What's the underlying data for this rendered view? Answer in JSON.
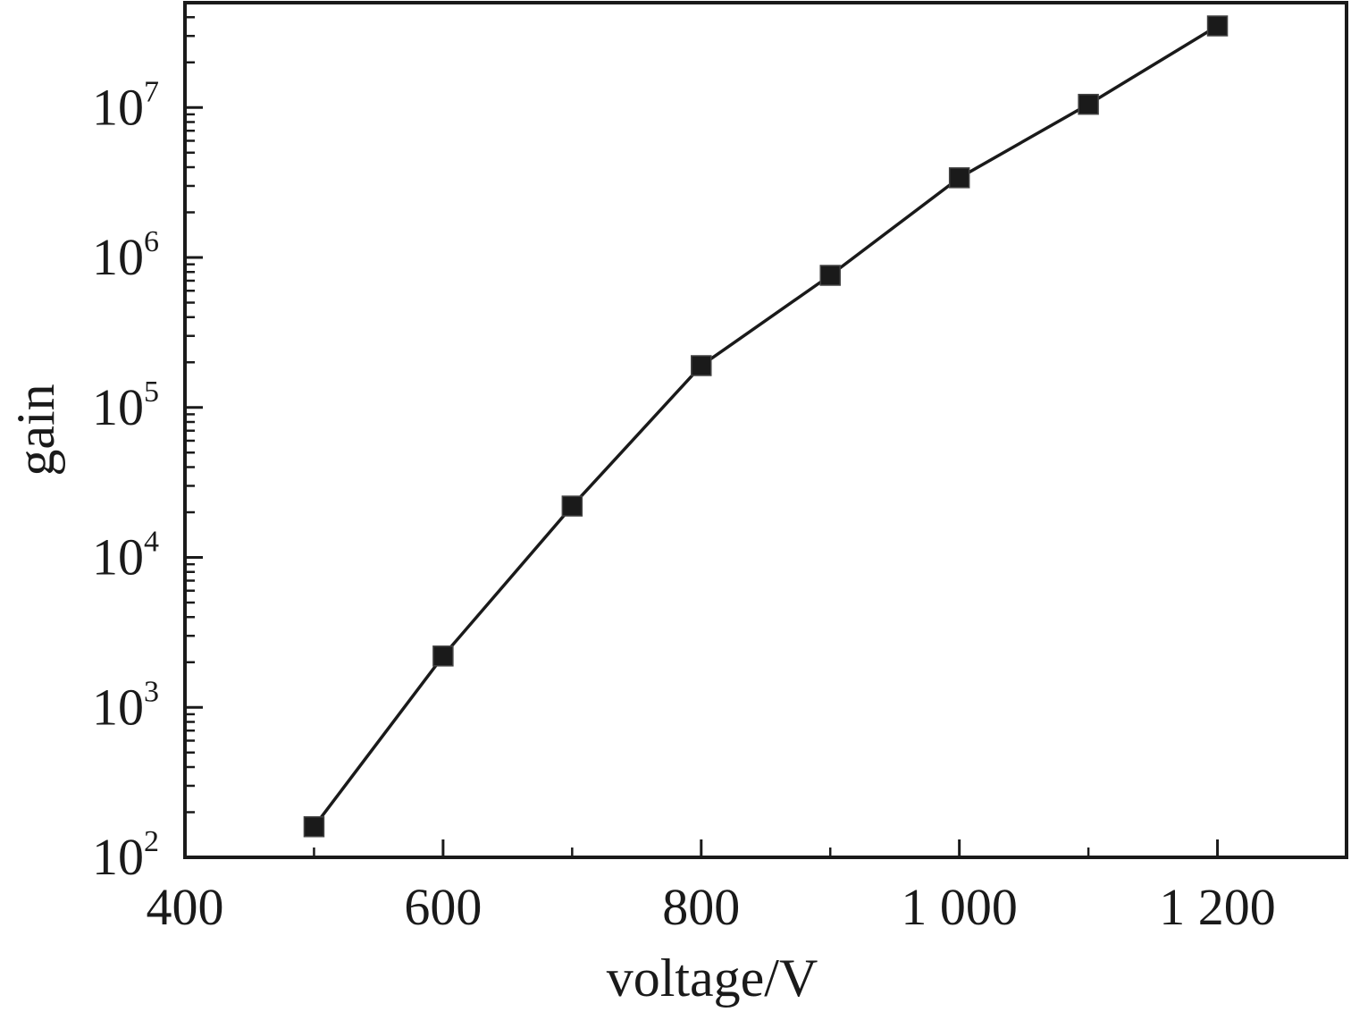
{
  "chart_data": {
    "type": "line",
    "title": "",
    "xlabel": "voltage/V",
    "ylabel": "gain",
    "x_scale": "linear",
    "y_scale": "log",
    "xlim": [
      400,
      1300
    ],
    "ylim": [
      100,
      50000000
    ],
    "x_ticks": [
      {
        "value": 400,
        "label": "400"
      },
      {
        "value": 600,
        "label": "600"
      },
      {
        "value": 800,
        "label": "800"
      },
      {
        "value": 1000,
        "label": "1 000"
      },
      {
        "value": 1200,
        "label": "1 200"
      }
    ],
    "y_ticks": [
      {
        "value": 100,
        "base": "10",
        "exp": "2"
      },
      {
        "value": 1000,
        "base": "10",
        "exp": "3"
      },
      {
        "value": 10000,
        "base": "10",
        "exp": "4"
      },
      {
        "value": 100000,
        "base": "10",
        "exp": "5"
      },
      {
        "value": 1000000,
        "base": "10",
        "exp": "6"
      },
      {
        "value": 10000000,
        "base": "10",
        "exp": "7"
      }
    ],
    "grid": false,
    "legend": "none",
    "marker": "square",
    "colors": {
      "line": "#1a1a1a",
      "marker": "#1a1a1a",
      "axis": "#1a1a1a"
    },
    "series": [
      {
        "x": [
          500,
          600,
          700,
          800,
          900,
          1000,
          1100,
          1200
        ],
        "y": [
          160,
          2200,
          22000,
          190000,
          760000,
          3400000,
          10500000,
          35000000
        ]
      }
    ]
  }
}
